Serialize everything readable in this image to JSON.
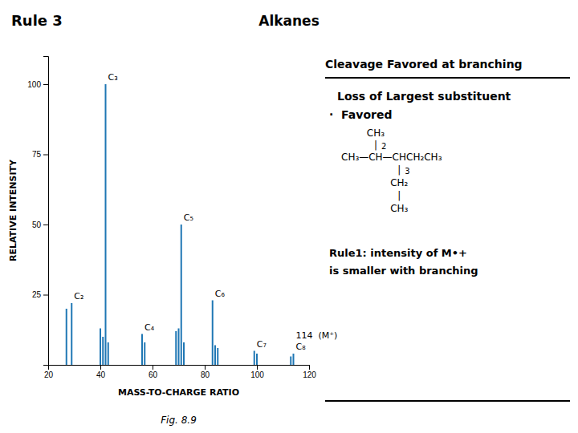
{
  "chart_data": {
    "type": "bar",
    "title": "Alkanes",
    "subtitle": "Rule 3",
    "caption": "Fig. 8.9",
    "xlabel": "MASS-TO-CHARGE RATIO",
    "ylabel": "RELATIVE INTENSITY",
    "x": [
      27,
      29,
      40,
      41,
      42,
      43,
      56,
      57,
      69,
      70,
      71,
      72,
      83,
      84,
      85,
      99,
      100,
      113,
      114
    ],
    "values": [
      20,
      22,
      13,
      10,
      100,
      8,
      11,
      8,
      12,
      13,
      50,
      8,
      23,
      7,
      6,
      5,
      4,
      3,
      4
    ],
    "xlim": [
      20,
      120
    ],
    "ylim": [
      0,
      110
    ],
    "xticks": [
      20,
      40,
      60,
      80,
      100,
      120
    ],
    "yticks": [
      25,
      50,
      75,
      100
    ],
    "grid": false,
    "annotations": [
      {
        "text": "C₃",
        "x": 42,
        "y": 100
      },
      {
        "text": "C₂",
        "x": 29,
        "y": 22
      },
      {
        "text": "C₄",
        "x": 56,
        "y": 11
      },
      {
        "text": "C₅",
        "x": 71,
        "y": 50
      },
      {
        "text": "C₆",
        "x": 83,
        "y": 23
      },
      {
        "text": "C₇",
        "x": 99,
        "y": 5
      },
      {
        "text": "C₈",
        "x": 114,
        "y": 4
      },
      {
        "text": "114  (M⁺)",
        "x": 114,
        "y": 4
      }
    ],
    "notes": [
      "Cleavage Favored at branching",
      "Loss of Largest substituent",
      "·  Favored",
      "Rule1: intensity of M•+",
      "is smaller with branching"
    ],
    "structure": [
      "CH₃",
      "|",
      "2",
      "CH₃—CH—CHCH₂CH₃",
      "3",
      "|",
      "CH₂",
      "|",
      "CH₃"
    ]
  }
}
